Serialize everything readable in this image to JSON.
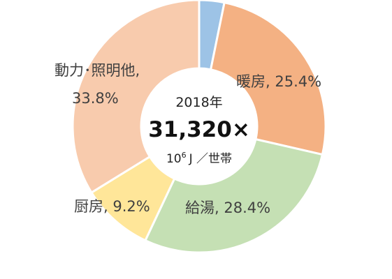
{
  "chart_data": {
    "type": "pie",
    "variant": "donut",
    "slices": [
      {
        "label": "",
        "value": 3.2,
        "color": "#9DC3E6",
        "label_text": ""
      },
      {
        "label": "暖房",
        "value": 25.4,
        "color": "#F4B183",
        "label_text": "暖房, 25.4%"
      },
      {
        "label": "給湯",
        "value": 28.4,
        "color": "#C5E0B4",
        "label_text": "給湯, 28.4%"
      },
      {
        "label": "厨房",
        "value": 9.2,
        "color": "#FFE699",
        "label_text": "厨房, 9.2%"
      },
      {
        "label": "動力・照明他",
        "value": 33.8,
        "color": "#F8CBAD",
        "label_text_line1": "動力･照明他,",
        "label_text_line2": "33.8%"
      }
    ],
    "center": {
      "year": "2018年",
      "total": "31,320×",
      "unit_base": "10",
      "unit_exp": "6",
      "unit_rest": "J ／世帯"
    }
  }
}
